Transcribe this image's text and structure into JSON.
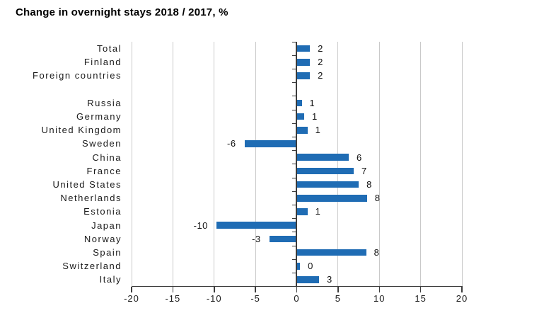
{
  "title": "Change in overnight stays 2018 / 2017, %",
  "chart_data": {
    "type": "bar",
    "orientation": "horizontal",
    "title": "Change in overnight stays 2018 / 2017, %",
    "value_unit": "%",
    "xlim": [
      -20,
      20
    ],
    "x_ticks": [
      -20,
      -15,
      -10,
      -5,
      0,
      5,
      10,
      15,
      20
    ],
    "grid": "vertical gridlines, no top/side frame",
    "legend": "none",
    "rows": [
      {
        "label": "Total",
        "value": 2,
        "bar_length": 1.6
      },
      {
        "label": "Finland",
        "value": 2,
        "bar_length": 1.6
      },
      {
        "label": "Foreign countries",
        "value": 2,
        "bar_length": 1.6
      },
      {
        "spacer": true
      },
      {
        "label": "Russia",
        "value": 1,
        "bar_length": 0.6
      },
      {
        "label": "Germany",
        "value": 1,
        "bar_length": 0.9
      },
      {
        "label": "United Kingdom",
        "value": 1,
        "bar_length": 1.3
      },
      {
        "label": "Sweden",
        "value": -6,
        "bar_length": -6.2
      },
      {
        "label": "China",
        "value": 6,
        "bar_length": 6.3
      },
      {
        "label": "France",
        "value": 7,
        "bar_length": 6.9
      },
      {
        "label": "United States",
        "value": 8,
        "bar_length": 7.5
      },
      {
        "label": "Netherlands",
        "value": 8,
        "bar_length": 8.5
      },
      {
        "label": "Estonia",
        "value": 1,
        "bar_length": 1.3
      },
      {
        "label": "Japan",
        "value": -10,
        "bar_length": -9.6
      },
      {
        "label": "Norway",
        "value": -3,
        "bar_length": -3.2
      },
      {
        "label": "Spain",
        "value": 8,
        "bar_length": 8.4
      },
      {
        "label": "Switzerland",
        "value": 0,
        "bar_length": 0.4
      },
      {
        "label": "Italy",
        "value": 3,
        "bar_length": 2.7
      }
    ],
    "colors": {
      "bar": "#1F6CB4",
      "gridline": "#C9C9C9",
      "axis": "#3C3C3C",
      "text": "#1A1A1A",
      "title": "#000000"
    }
  }
}
